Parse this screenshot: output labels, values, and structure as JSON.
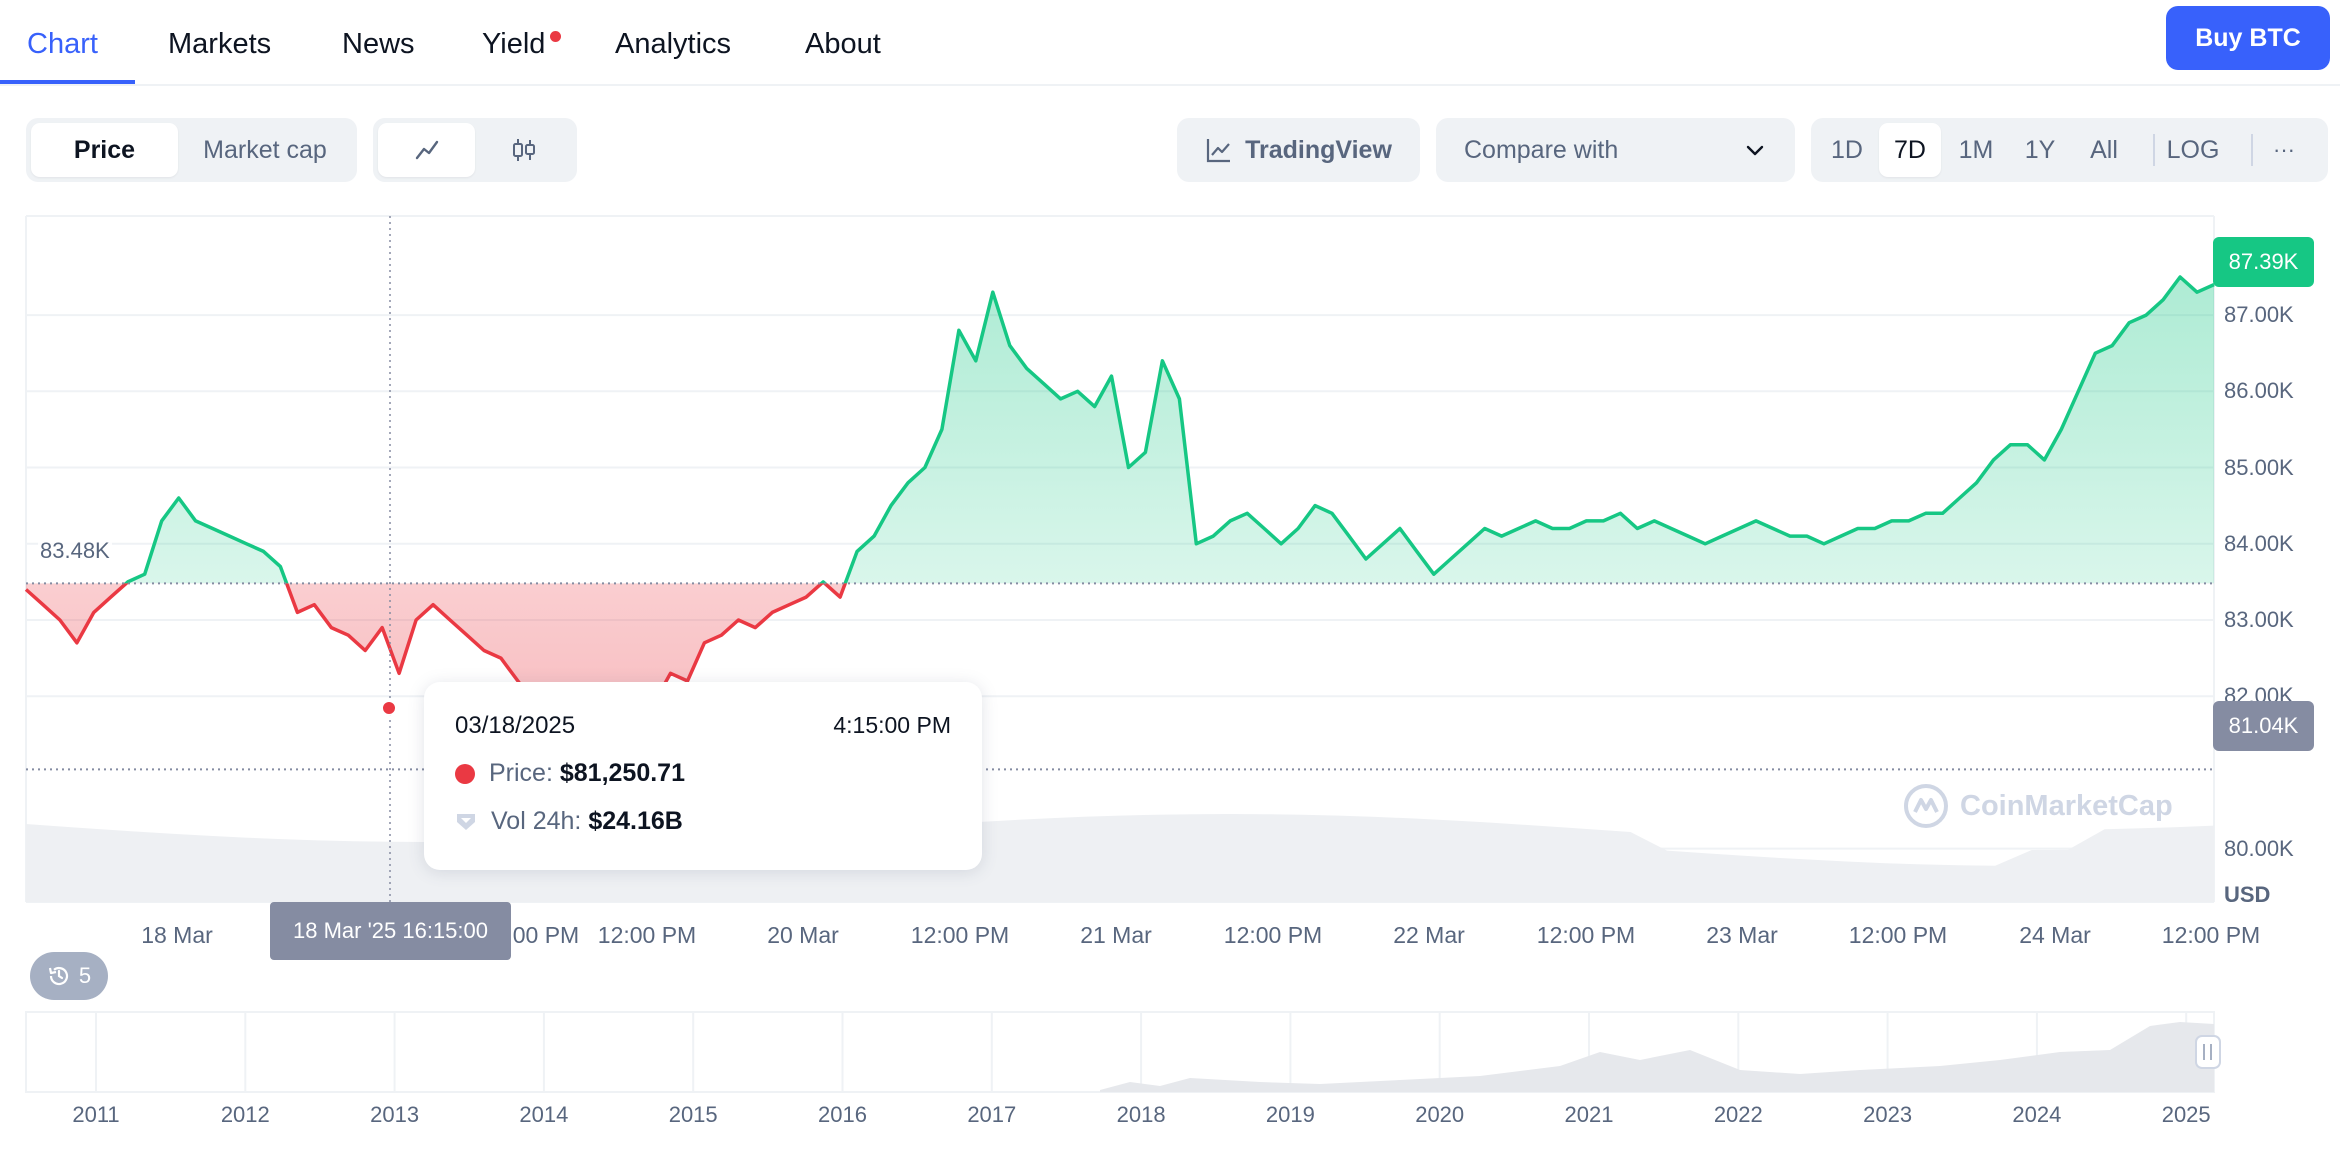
{
  "nav": {
    "tabs": [
      {
        "label": "Chart",
        "active": true
      },
      {
        "label": "Markets"
      },
      {
        "label": "News"
      },
      {
        "label": "Yield",
        "badge": true
      },
      {
        "label": "Analytics"
      },
      {
        "label": "About"
      }
    ],
    "buy_label": "Buy BTC"
  },
  "toolbar": {
    "metric": {
      "price": "Price",
      "market_cap": "Market cap"
    },
    "chart_types": {
      "line": "line-chart-icon",
      "candle": "candlestick-icon"
    },
    "tradingview_label": "TradingView",
    "compare_label": "Compare with",
    "ranges": [
      "1D",
      "7D",
      "1M",
      "1Y",
      "All"
    ],
    "active_range": "7D",
    "log_label": "LOG",
    "more_label": "···"
  },
  "chart_data": {
    "type": "line",
    "currency": "USD",
    "baseline": 83480,
    "baseline_label": "83.48K",
    "current_label": "87.39K",
    "cursor_label": "81.04K",
    "ylim": [
      79300,
      88300
    ],
    "y_ticks": [
      "87.00K",
      "86.00K",
      "85.00K",
      "84.00K",
      "83.00K",
      "82.00K",
      "80.00K"
    ],
    "y_tick_values": [
      87000,
      86000,
      85000,
      84000,
      83000,
      82000,
      80000
    ],
    "x_ticks": [
      "18 Mar",
      "12:00 PM",
      "20 Mar",
      "12:00 PM",
      "21 Mar",
      "12:00 PM",
      "22 Mar",
      "12:00 PM",
      "23 Mar",
      "12:00 PM",
      "24 Mar",
      "12:00 PM"
    ],
    "x_tick_positions_hours": [
      24,
      60,
      72,
      84,
      96,
      108,
      120,
      132,
      144,
      156,
      168,
      180
    ],
    "x_hidden": "12:00 PM",
    "x_cursor_label": "18 Mar '25 16:15:00",
    "cursor_hour": 40.25,
    "x_range_hours": [
      0,
      180
    ],
    "points": [
      [
        0,
        83400
      ],
      [
        1,
        83200
      ],
      [
        2,
        83000
      ],
      [
        3,
        82700
      ],
      [
        4,
        83100
      ],
      [
        5,
        83300
      ],
      [
        6,
        83500
      ],
      [
        7,
        83600
      ],
      [
        8,
        84300
      ],
      [
        9,
        84600
      ],
      [
        10,
        84300
      ],
      [
        11,
        84200
      ],
      [
        12,
        84100
      ],
      [
        13,
        84000
      ],
      [
        14,
        83900
      ],
      [
        15,
        83700
      ],
      [
        16,
        83100
      ],
      [
        17,
        83200
      ],
      [
        18,
        82900
      ],
      [
        19,
        82800
      ],
      [
        20,
        82600
      ],
      [
        21,
        82900
      ],
      [
        22,
        82300
      ],
      [
        23,
        83000
      ],
      [
        24,
        83200
      ],
      [
        25,
        83000
      ],
      [
        26,
        82800
      ],
      [
        27,
        82600
      ],
      [
        28,
        82500
      ],
      [
        29,
        82200
      ],
      [
        30,
        81900
      ],
      [
        31,
        81300
      ],
      [
        32,
        81600
      ],
      [
        33,
        81800
      ],
      [
        34,
        81600
      ],
      [
        35,
        81500
      ],
      [
        36,
        82100
      ],
      [
        37,
        81900
      ],
      [
        38,
        82300
      ],
      [
        39,
        82200
      ],
      [
        40,
        82700
      ],
      [
        41,
        82800
      ],
      [
        42,
        83000
      ],
      [
        43,
        82900
      ],
      [
        44,
        83100
      ],
      [
        45,
        83200
      ],
      [
        46,
        83300
      ],
      [
        47,
        83500
      ],
      [
        48,
        83300
      ],
      [
        49,
        83900
      ],
      [
        50,
        84100
      ],
      [
        51,
        84500
      ],
      [
        52,
        84800
      ],
      [
        53,
        85000
      ],
      [
        54,
        85500
      ],
      [
        55,
        86800
      ],
      [
        56,
        86400
      ],
      [
        57,
        87300
      ],
      [
        58,
        86600
      ],
      [
        59,
        86300
      ],
      [
        60,
        86100
      ],
      [
        61,
        85900
      ],
      [
        62,
        86000
      ],
      [
        63,
        85800
      ],
      [
        64,
        86200
      ],
      [
        65,
        85000
      ],
      [
        66,
        85200
      ],
      [
        67,
        86400
      ],
      [
        68,
        85900
      ],
      [
        69,
        84000
      ],
      [
        70,
        84100
      ],
      [
        71,
        84300
      ],
      [
        72,
        84400
      ],
      [
        73,
        84200
      ],
      [
        74,
        84000
      ],
      [
        75,
        84200
      ],
      [
        76,
        84500
      ],
      [
        77,
        84400
      ],
      [
        78,
        84100
      ],
      [
        79,
        83800
      ],
      [
        80,
        84000
      ],
      [
        81,
        84200
      ],
      [
        82,
        83900
      ],
      [
        83,
        83600
      ],
      [
        84,
        83800
      ],
      [
        85,
        84000
      ],
      [
        86,
        84200
      ],
      [
        87,
        84100
      ],
      [
        88,
        84200
      ],
      [
        89,
        84300
      ],
      [
        90,
        84200
      ],
      [
        91,
        84200
      ],
      [
        92,
        84300
      ],
      [
        93,
        84300
      ],
      [
        94,
        84400
      ],
      [
        95,
        84200
      ],
      [
        96,
        84300
      ],
      [
        97,
        84200
      ],
      [
        98,
        84100
      ],
      [
        99,
        84000
      ],
      [
        100,
        84100
      ],
      [
        101,
        84200
      ],
      [
        102,
        84300
      ],
      [
        103,
        84200
      ],
      [
        104,
        84100
      ],
      [
        105,
        84100
      ],
      [
        106,
        84000
      ],
      [
        107,
        84100
      ],
      [
        108,
        84200
      ],
      [
        109,
        84200
      ],
      [
        110,
        84300
      ],
      [
        111,
        84300
      ],
      [
        112,
        84400
      ],
      [
        113,
        84400
      ],
      [
        114,
        84600
      ],
      [
        115,
        84800
      ],
      [
        116,
        85100
      ],
      [
        117,
        85300
      ],
      [
        118,
        85300
      ],
      [
        119,
        85100
      ],
      [
        120,
        85500
      ],
      [
        121,
        86000
      ],
      [
        122,
        86500
      ],
      [
        123,
        86600
      ],
      [
        124,
        86900
      ],
      [
        125,
        87000
      ],
      [
        126,
        87200
      ],
      [
        127,
        87500
      ],
      [
        128,
        87300
      ],
      [
        129,
        87400
      ]
    ],
    "volume_label": "Vol 24h"
  },
  "tooltip": {
    "date": "03/18/2025",
    "time": "4:15:00 PM",
    "price_label": "Price:",
    "price_value": "$81,250.71",
    "vol_label": "Vol 24h:",
    "vol_value": "$24.16B"
  },
  "watermark": "CoinMarketCap",
  "history": {
    "count": "5"
  },
  "navigator": {
    "years": [
      "2011",
      "2012",
      "2013",
      "2014",
      "2015",
      "2016",
      "2017",
      "2018",
      "2019",
      "2020",
      "2021",
      "2022",
      "2023",
      "2024",
      "2025"
    ]
  },
  "colors": {
    "up": "#16c784",
    "down": "#ea3943",
    "accent": "#3861fb",
    "muted": "#58667e",
    "grid": "#eff2f5"
  }
}
